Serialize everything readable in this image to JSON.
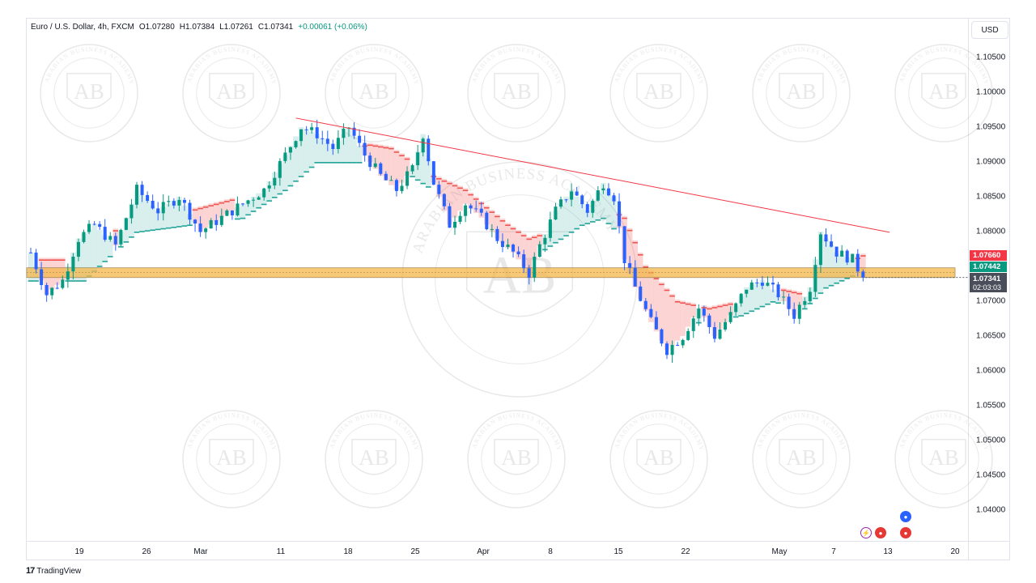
{
  "header": {
    "symbol": "Euro / U.S. Dollar, 4h, FXCM",
    "open": "O1.07280",
    "high": "H1.07384",
    "low": "L1.07261",
    "close": "C1.07341",
    "change": "+0.00061 (+0.06%)"
  },
  "currency_label": "USD",
  "footer": {
    "logo": "17",
    "brand": "TradingView"
  },
  "watermark": {
    "text": "AB",
    "ring_text": "ARABIAN BUSINESS ACADEMY"
  },
  "price_tags": {
    "upper": "1.07660",
    "lower": "1.07442",
    "last": "1.07341",
    "countdown": "02:03:03"
  },
  "colors": {
    "up": "#089981",
    "down": "#2962ff",
    "trendline": "#f23645",
    "zone_fill": "#f5b74a",
    "cloud_green": "#26a69a",
    "cloud_red": "#ef5350"
  },
  "chart_data": {
    "type": "candlestick",
    "title": "Euro / U.S. Dollar, 4h, FXCM",
    "y_axis": {
      "ticks": [
        "1.10500",
        "1.10000",
        "1.09500",
        "1.09000",
        "1.08500",
        "1.08000",
        "1.07500",
        "1.07000",
        "1.06500",
        "1.06000",
        "1.05500",
        "1.05000",
        "1.04500",
        "1.04000"
      ],
      "range": [
        1.0365,
        1.1085
      ]
    },
    "x_axis": {
      "ticks": [
        "19",
        "26",
        "Mar",
        "11",
        "18",
        "25",
        "Apr",
        "8",
        "15",
        "22",
        "May",
        "7",
        "13",
        "20"
      ]
    },
    "price_path": [
      [
        0,
        1.077
      ],
      [
        3,
        1.071
      ],
      [
        6,
        1.073
      ],
      [
        9,
        1.079
      ],
      [
        12,
        1.081
      ],
      [
        16,
        1.078
      ],
      [
        20,
        1.086
      ],
      [
        24,
        1.083
      ],
      [
        28,
        1.085
      ],
      [
        32,
        1.08
      ],
      [
        36,
        1.082
      ],
      [
        40,
        1.084
      ],
      [
        44,
        1.086
      ],
      [
        48,
        1.091
      ],
      [
        51,
        1.095
      ],
      [
        54,
        1.094
      ],
      [
        57,
        1.092
      ],
      [
        60,
        1.095
      ],
      [
        63,
        1.091
      ],
      [
        66,
        1.088
      ],
      [
        69,
        1.086
      ],
      [
        72,
        1.089
      ],
      [
        74,
        1.094
      ],
      [
        76,
        1.087
      ],
      [
        79,
        1.081
      ],
      [
        82,
        1.084
      ],
      [
        85,
        1.082
      ],
      [
        88,
        1.079
      ],
      [
        91,
        1.077
      ],
      [
        94,
        1.074
      ],
      [
        96,
        1.078
      ],
      [
        99,
        1.083
      ],
      [
        102,
        1.086
      ],
      [
        105,
        1.083
      ],
      [
        108,
        1.087
      ],
      [
        110,
        1.085
      ],
      [
        112,
        1.076
      ],
      [
        114,
        1.072
      ],
      [
        117,
        1.067
      ],
      [
        120,
        1.063
      ],
      [
        123,
        1.065
      ],
      [
        126,
        1.069
      ],
      [
        129,
        1.065
      ],
      [
        132,
        1.068
      ],
      [
        135,
        1.072
      ],
      [
        138,
        1.073
      ],
      [
        141,
        1.071
      ],
      [
        144,
        1.068
      ],
      [
        147,
        1.072
      ],
      [
        149,
        1.08
      ],
      [
        152,
        1.077
      ],
      [
        155,
        1.076
      ],
      [
        157,
        1.0734
      ]
    ],
    "cloud": [
      [
        0,
        1.076,
        1.073
      ],
      [
        10,
        1.076,
        1.073
      ],
      [
        20,
        1.083,
        1.08
      ],
      [
        30,
        1.083,
        1.081
      ],
      [
        40,
        1.085,
        1.082
      ],
      [
        48,
        1.088,
        1.086
      ],
      [
        54,
        1.092,
        1.09
      ],
      [
        60,
        1.092,
        1.09
      ],
      [
        64,
        1.0925,
        1.09
      ],
      [
        68,
        1.092,
        1.09
      ],
      [
        72,
        1.09,
        1.088
      ],
      [
        76,
        1.088,
        1.086
      ],
      [
        82,
        1.086,
        1.083
      ],
      [
        86,
        1.0835,
        1.081
      ],
      [
        90,
        1.081,
        1.079
      ],
      [
        94,
        1.079,
        1.076
      ],
      [
        98,
        1.08,
        1.078
      ],
      [
        104,
        1.083,
        1.081
      ],
      [
        108,
        1.084,
        1.082
      ],
      [
        112,
        1.082,
        1.079
      ],
      [
        116,
        1.075,
        1.072
      ],
      [
        122,
        1.07,
        1.067
      ],
      [
        128,
        1.069,
        1.067
      ],
      [
        134,
        1.07,
        1.068
      ],
      [
        140,
        1.072,
        1.07
      ],
      [
        146,
        1.071,
        1.069
      ],
      [
        150,
        1.074,
        1.072
      ],
      [
        157,
        1.0766,
        1.0744
      ]
    ],
    "trendline": {
      "from": [
        50,
        1.0963
      ],
      "to": [
        162,
        1.0799
      ]
    },
    "support_zone": {
      "upper": 1.0748,
      "lower": 1.0734
    },
    "last_price": 1.07341
  }
}
